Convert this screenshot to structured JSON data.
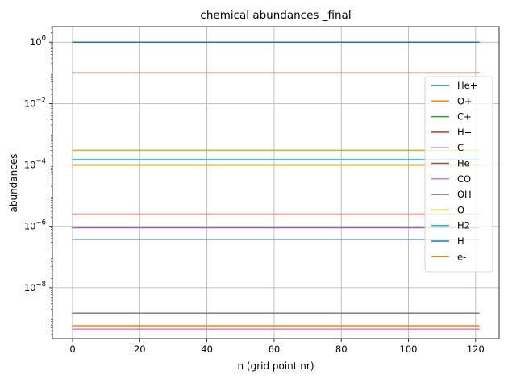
{
  "chart_data": {
    "type": "line",
    "title": "chemical abundances _final",
    "xlabel": "n (grid point nr)",
    "ylabel": "abundances",
    "x_range": [
      0,
      121
    ],
    "xlim": [
      -6,
      127
    ],
    "ylim": [
      2.2e-10,
      3.2
    ],
    "yscale": "log",
    "grid": true,
    "legend_position": "center-right",
    "x_ticks": [
      0,
      20,
      40,
      60,
      80,
      100,
      120
    ],
    "x_tick_labels": [
      "0",
      "20",
      "40",
      "60",
      "80",
      "100",
      "120"
    ],
    "y_major_ticks": [
      {
        "value": 1,
        "base": "10",
        "exp": "0"
      },
      {
        "value": 0.01,
        "base": "10",
        "exp": "−2"
      },
      {
        "value": 0.0001,
        "base": "10",
        "exp": "−4"
      },
      {
        "value": 1e-06,
        "base": "10",
        "exp": "−6"
      },
      {
        "value": 1e-08,
        "base": "10",
        "exp": "−8"
      }
    ],
    "series": [
      {
        "name": "He+",
        "color": "#1f77b4",
        "value": 3.8e-07
      },
      {
        "name": "O+",
        "color": "#ff7f0e",
        "value": 5.8e-10
      },
      {
        "name": "C+",
        "color": "#2ca02c",
        "value": 0.0001
      },
      {
        "name": "H+",
        "color": "#d62728",
        "value": 2.5e-06
      },
      {
        "name": "C",
        "color": "#9467bd",
        "value": 9e-07
      },
      {
        "name": "He",
        "color": "#8c564b",
        "value": 0.1
      },
      {
        "name": "CO",
        "color": "#e377c2",
        "value": 4.5e-10
      },
      {
        "name": "OH",
        "color": "#7f7f7f",
        "value": 1.5e-09
      },
      {
        "name": "O",
        "color": "#bcbd22",
        "value": 0.0003
      },
      {
        "name": "H2",
        "color": "#17becf",
        "value": 0.00015
      },
      {
        "name": "H",
        "color": "#1f77b4",
        "value": 1.0
      },
      {
        "name": "e-",
        "color": "#ff7f0e",
        "value": 0.0001
      }
    ],
    "draw_order": [
      10,
      5,
      8,
      9,
      2,
      11,
      3,
      4,
      0,
      7,
      1,
      6
    ]
  }
}
